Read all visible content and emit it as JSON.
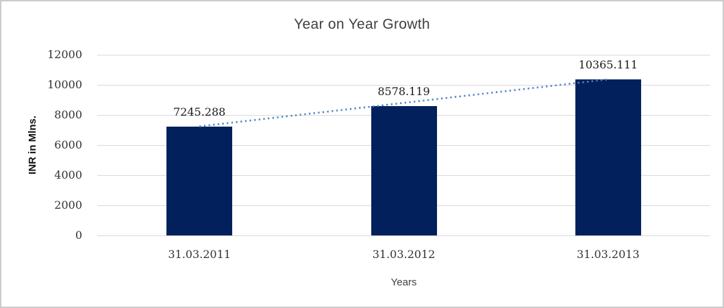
{
  "chart_data": {
    "type": "bar",
    "title": "Year on Year Growth",
    "xlabel": "Years",
    "ylabel": "INR in Mlns.",
    "categories": [
      "31.03.2011",
      "31.03.2012",
      "31.03.2013"
    ],
    "values": [
      7245.288,
      8578.119,
      10365.111
    ],
    "data_labels": [
      "7245.288",
      "8578.119",
      "10365.111"
    ],
    "ylim": [
      0,
      12000
    ],
    "yticks": [
      0,
      2000,
      4000,
      6000,
      8000,
      10000,
      12000
    ],
    "grid": true,
    "legend": "none",
    "bar_color": "#02215C",
    "gridline_color": "#D9D9D9",
    "trendline": {
      "type": "linear",
      "style": "dotted",
      "color": "#4E86C8",
      "from_value": 7245.288,
      "to_value": 10365.111
    }
  }
}
